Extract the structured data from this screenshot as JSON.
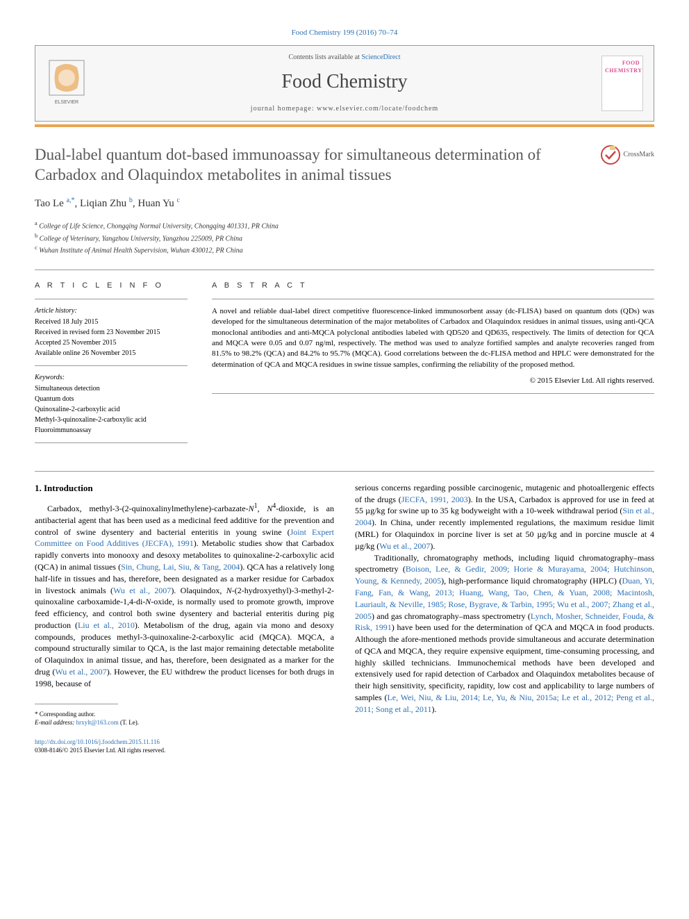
{
  "citation": "Food Chemistry 199 (2016) 70–74",
  "header": {
    "contents_prefix": "Contents lists available at ",
    "contents_link": "ScienceDirect",
    "journal_name": "Food Chemistry",
    "homepage_prefix": "journal homepage: ",
    "homepage_url": "www.elsevier.com/locate/foodchem",
    "cover_text1": "FOOD",
    "cover_text2": "CHEMISTRY"
  },
  "title": "Dual-label quantum dot-based immunoassay for simultaneous determination of Carbadox and Olaquindox metabolites in animal tissues",
  "crossmark_label": "CrossMark",
  "authors_html": "Tao Le <sup>a,*</sup>, Liqian Zhu <sup>b</sup>, Huan Yu <sup>c</sup>",
  "affiliations": {
    "a": "College of Life Science, Chongqing Normal University, Chongqing 401331, PR China",
    "b": "College of Veterinary, Yangzhou University, Yangzhou 225009, PR China",
    "c": "Wuhan Institute of Animal Health Supervision, Wuhan 430012, PR China"
  },
  "info": {
    "heading": "A R T I C L E   I N F O",
    "history_label": "Article history:",
    "received": "Received 18 July 2015",
    "revised": "Received in revised form 23 November 2015",
    "accepted": "Accepted 25 November 2015",
    "online": "Available online 26 November 2015",
    "keywords_label": "Keywords:",
    "kw1": "Simultaneous detection",
    "kw2": "Quantum dots",
    "kw3": "Quinoxaline-2-carboxylic acid",
    "kw4": "Methyl-3-quinoxaline-2-carboxylic acid",
    "kw5": "Fluoroimmunoassay"
  },
  "abstract": {
    "heading": "A B S T R A C T",
    "text": "A novel and reliable dual-label direct competitive fluorescence-linked immunosorbent assay (dc-FLISA) based on quantum dots (QDs) was developed for the simultaneous determination of the major metabolites of Carbadox and Olaquindox residues in animal tissues, using anti-QCA monoclonal antibodies and anti-MQCA polyclonal antibodies labeled with QD520 and QD635, respectively. The limits of detection for QCA and MQCA were 0.05 and 0.07 ng/ml, respectively. The method was used to analyze fortified samples and analyte recoveries ranged from 81.5% to 98.2% (QCA) and 84.2% to 95.7% (MQCA). Good correlations between the dc-FLISA method and HPLC were demonstrated for the determination of QCA and MQCA residues in swine tissue samples, confirming the reliability of the proposed method.",
    "copyright": "© 2015 Elsevier Ltd. All rights reserved."
  },
  "section1_heading": "1. Introduction",
  "col1_html": "Carbadox, methyl-3-(2-quinoxalinylmethylene)-carbazate-<i>N</i><sup>1</sup>, <i>N</i><sup>4</sup>-dioxide, is an antibacterial agent that has been used as a medicinal feed additive for the prevention and control of swine dysentery and bacterial enteritis in young swine (<span class='ref-link'>Joint Expert Committee on Food Additives (JECFA), 1991</span>). Metabolic studies show that Carbadox rapidly converts into monooxy and desoxy metabolites to quinoxaline-2-carboxylic acid (QCA) in animal tissues (<span class='ref-link'>Sin, Chung, Lai, Siu, &amp; Tang, 2004</span>). QCA has a relatively long half-life in tissues and has, therefore, been designated as a marker residue for Carbadox in livestock animals (<span class='ref-link'>Wu et al., 2007</span>). Olaquindox, <i>N</i>-(2-hydroxyethyl)-3-methyl-2-quinoxaline carboxamide-1,4-di-<i>N</i>-oxide, is normally used to promote growth, improve feed efficiency, and control both swine dysentery and bacterial enteritis during pig production (<span class='ref-link'>Liu et al., 2010</span>). Metabolism of the drug, again via mono and desoxy compounds, produces methyl-3-quinoxaline-2-carboxylic acid (MQCA). MQCA, a compound structurally similar to QCA, is the last major remaining detectable metabolite of Olaquindox in animal tissue, and has, therefore, been designated as a marker for the drug (<span class='ref-link'>Wu et al., 2007</span>). However, the EU withdrew the product licenses for both drugs in 1998, because of",
  "col2_html": "serious concerns regarding possible carcinogenic, mutagenic and photoallergenic effects of the drugs (<span class='ref-link'>JECFA, 1991, 2003</span>). In the USA, Carbadox is approved for use in feed at 55 µg/kg for swine up to 35 kg bodyweight with a 10-week withdrawal period (<span class='ref-link'>Sin et al., 2004</span>). In China, under recently implemented regulations, the maximum residue limit (MRL) for Olaquindox in porcine liver is set at 50 µg/kg and in porcine muscle at 4 µg/kg (<span class='ref-link'>Wu et al., 2007</span>).<br>&nbsp;&nbsp;&nbsp;&nbsp;Traditionally, chromatography methods, including liquid chromatography–mass spectrometry (<span class='ref-link'>Boison, Lee, &amp; Gedir, 2009; Horie &amp; Murayama, 2004; Hutchinson, Young, &amp; Kennedy, 2005</span>), high-performance liquid chromatography (HPLC) (<span class='ref-link'>Duan, Yi, Fang, Fan, &amp; Wang, 2013; Huang, Wang, Tao, Chen, &amp; Yuan, 2008; Macintosh, Lauriault, &amp; Neville, 1985; Rose, Bygrave, &amp; Tarbin, 1995; Wu et al., 2007; Zhang et al., 2005</span>) and gas chromatography–mass spectrometry (<span class='ref-link'>Lynch, Mosher, Schneider, Fouda, &amp; Risk, 1991</span>) have been used for the determination of QCA and MQCA in food products. Although the afore-mentioned methods provide simultaneous and accurate determination of QCA and MQCA, they require expensive equipment, time-consuming processing, and highly skilled technicians. Immunochemical methods have been developed and extensively used for rapid detection of Carbadox and Olaquindox metabolites because of their high sensitivity, specificity, rapidity, low cost and applicability to large numbers of samples (<span class='ref-link'>Le, Wei, Niu, &amp; Liu, 2014; Le, Yu, &amp; Niu, 2015a; Le et al., 2012; Peng et al., 2011; Song et al., 2011</span>).",
  "corresponding": {
    "label": "* Corresponding author.",
    "email_label": "E-mail address: ",
    "email": "hrxylt@163.com",
    "email_suffix": " (T. Le)."
  },
  "footer": {
    "doi_label": "http://dx.doi.org/10.1016/j.foodchem.2015.11.116",
    "issn_line": "0308-8146/© 2015 Elsevier Ltd. All rights reserved."
  },
  "colors": {
    "link": "#2a6fb5",
    "orange_bar": "#e8a553",
    "title_gray": "#585858",
    "cover_pink": "#d94f8e"
  }
}
